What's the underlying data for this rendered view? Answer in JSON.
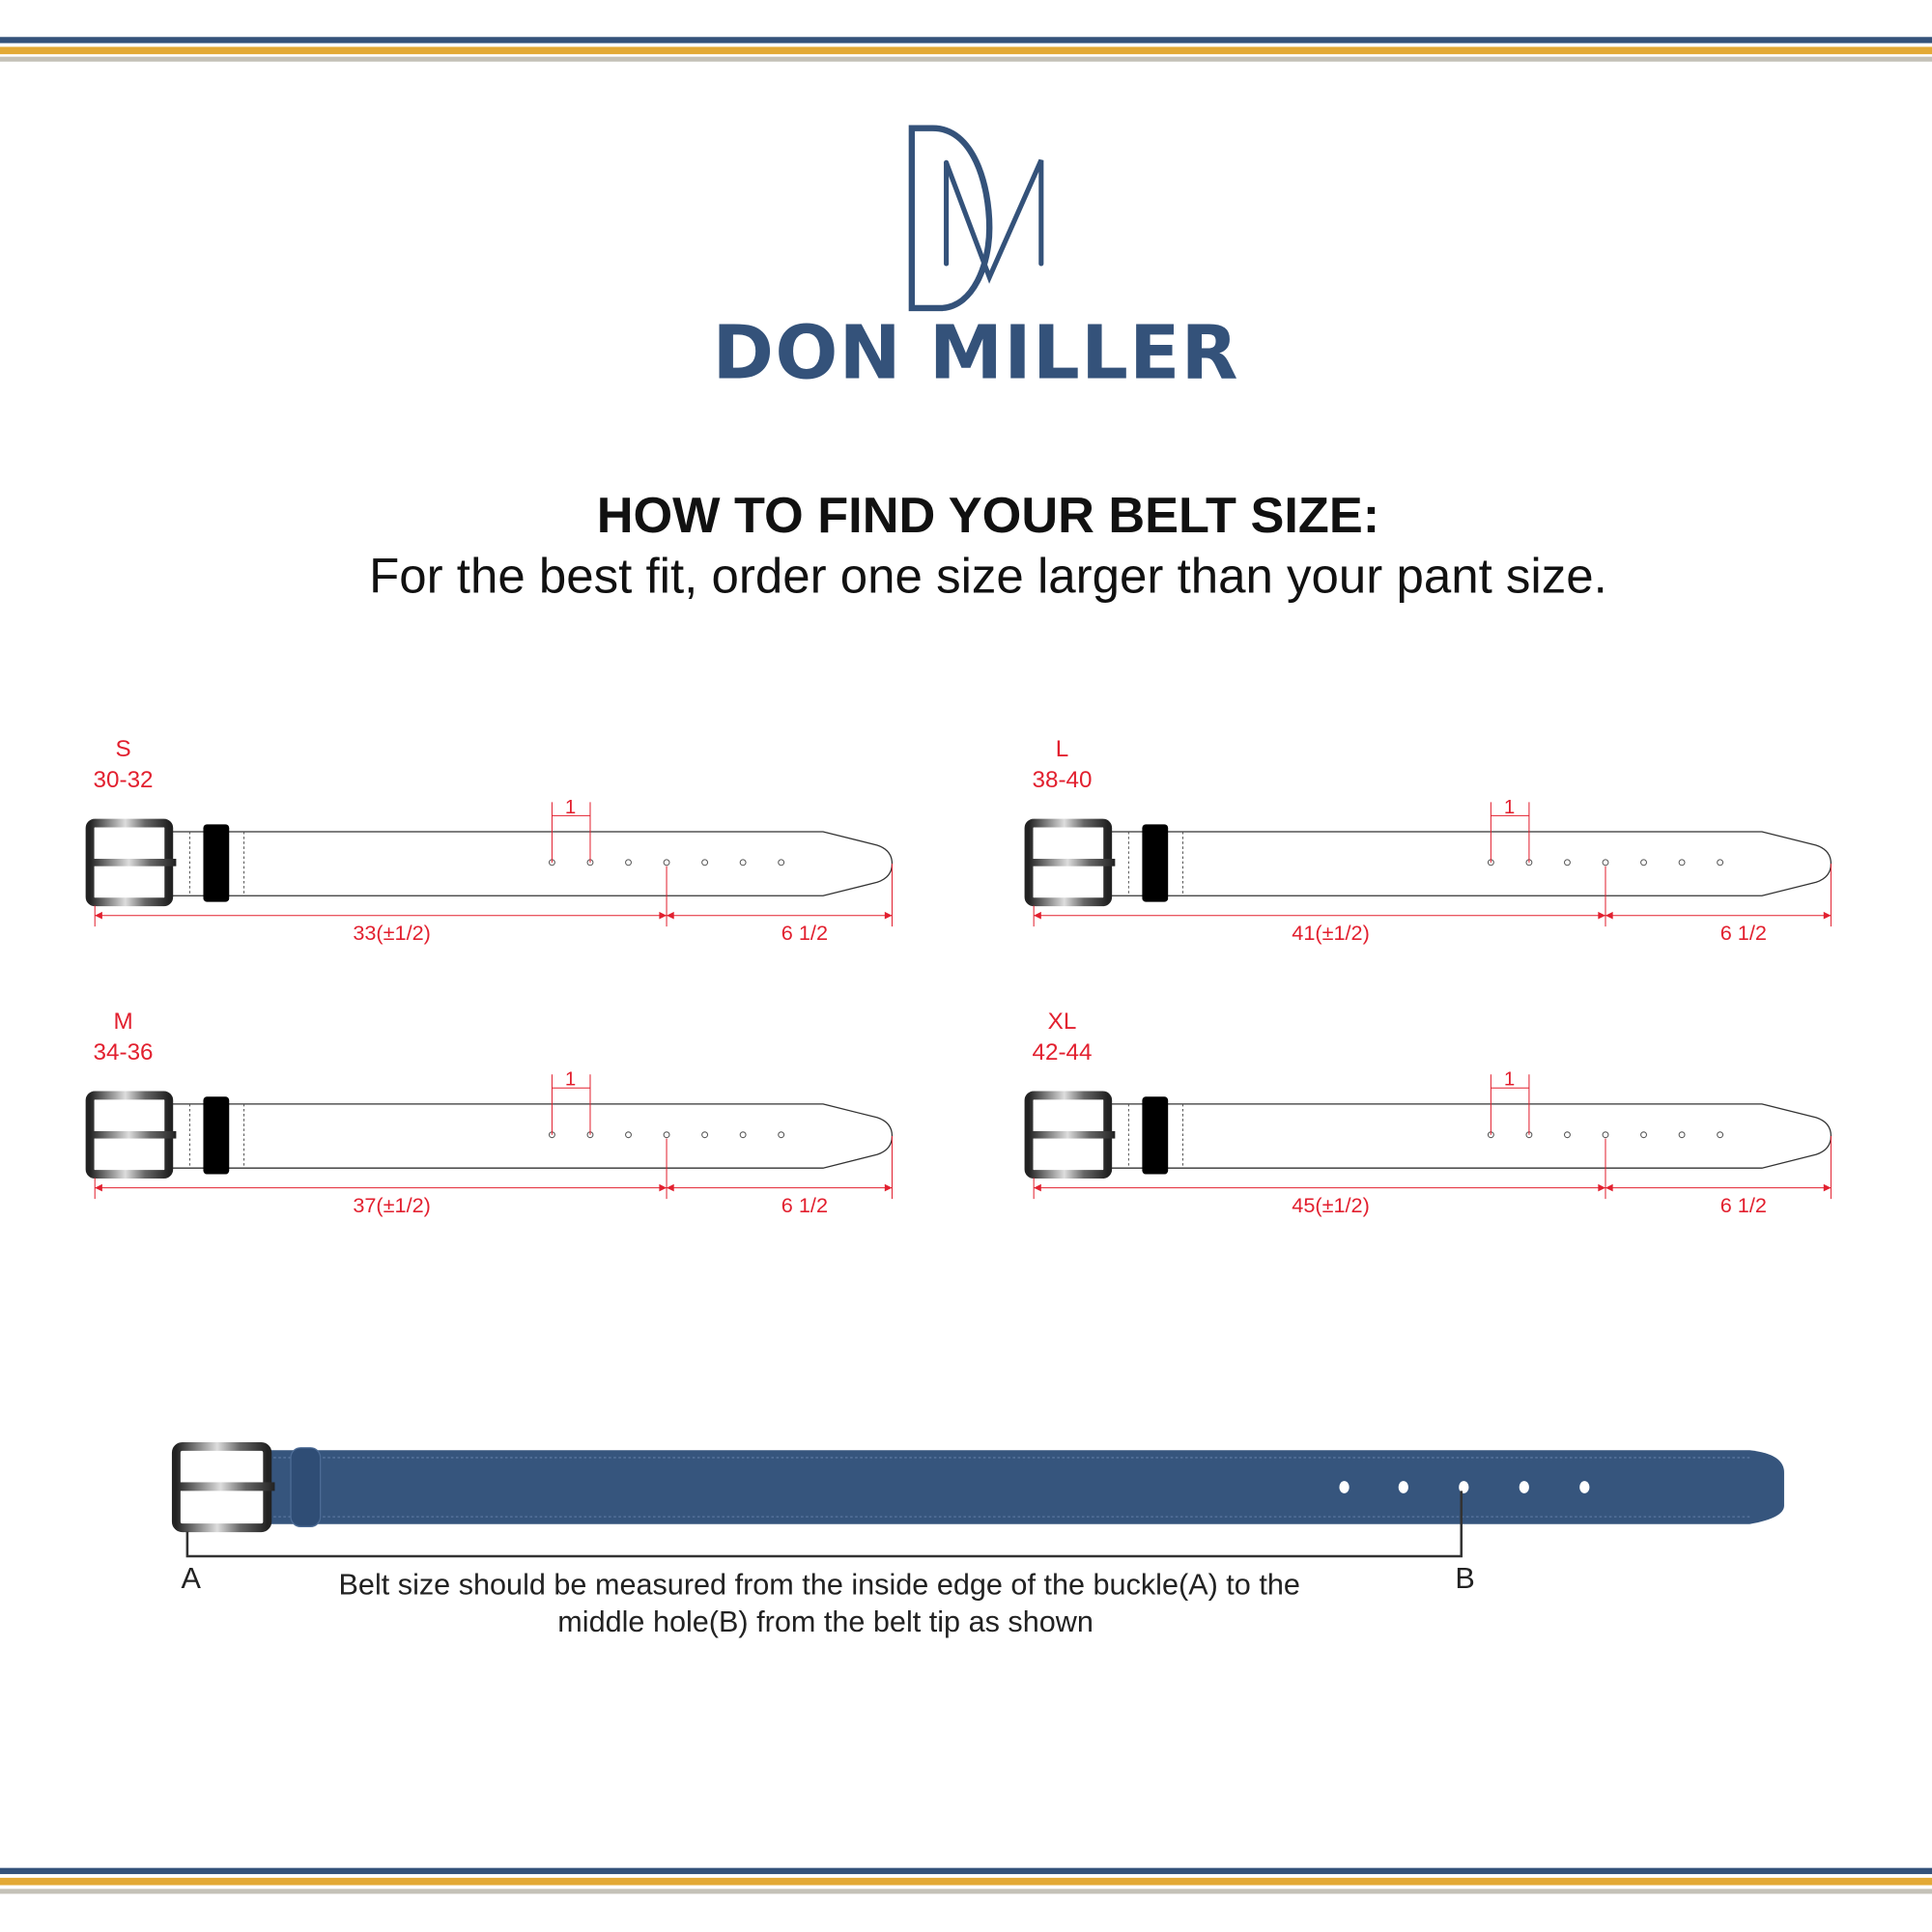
{
  "brand": {
    "name": "DON MILLER",
    "monogram": "DM"
  },
  "heading": {
    "title": "HOW TO FIND YOUR BELT SIZE:",
    "subtitle": "For the best fit, order one size larger than your pant size."
  },
  "colors": {
    "navy": "#34527a",
    "gold": "#e3a935",
    "gray": "#c4c1b7",
    "red": "#e2202f",
    "belt_blue": "#36557d"
  },
  "sizes": [
    {
      "size": "S",
      "range": "30-32",
      "length": "33(±1/2)",
      "tip": "6 1/2",
      "spacing": "1"
    },
    {
      "size": "L",
      "range": "38-40",
      "length": "41(±1/2)",
      "tip": "6 1/2",
      "spacing": "1"
    },
    {
      "size": "M",
      "range": "34-36",
      "length": "37(±1/2)",
      "tip": "6 1/2",
      "spacing": "1"
    },
    {
      "size": "XL",
      "range": "42-44",
      "length": "45(±1/2)",
      "tip": "6 1/2",
      "spacing": "1"
    }
  ],
  "measure": {
    "point_a": "A",
    "point_b": "B",
    "line1": "Belt size should be measured from the inside edge of the buckle(A) to the",
    "line2": "middle hole(B) from the belt tip as shown"
  }
}
